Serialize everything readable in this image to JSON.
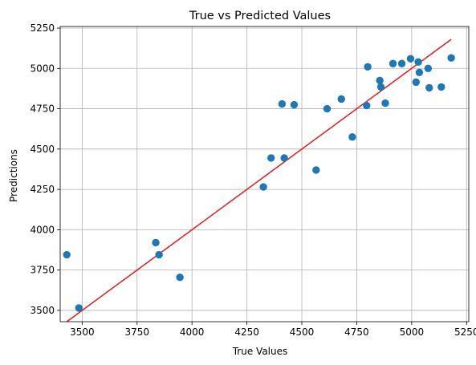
{
  "chart_data": {
    "type": "scatter",
    "title": "True vs Predicted Values",
    "xlabel": "True Values",
    "ylabel": "Predictions",
    "xlim": [
      3400,
      5260
    ],
    "ylim": [
      3430,
      5260
    ],
    "xticks": [
      3500,
      3750,
      4000,
      4250,
      4500,
      4750,
      5000,
      5250
    ],
    "yticks": [
      3500,
      3750,
      4000,
      4250,
      4500,
      4750,
      5000,
      5250
    ],
    "xtick_labels": [
      "3500",
      "3750",
      "4000",
      "4250",
      "4500",
      "4750",
      "5000",
      "5250"
    ],
    "ytick_labels": [
      "3500",
      "3750",
      "4000",
      "4250",
      "4500",
      "4750",
      "5000",
      "5250"
    ],
    "grid": true,
    "points": [
      {
        "x": 3430,
        "y": 3845
      },
      {
        "x": 3485,
        "y": 3515
      },
      {
        "x": 3835,
        "y": 3920
      },
      {
        "x": 3850,
        "y": 3845
      },
      {
        "x": 3945,
        "y": 3705
      },
      {
        "x": 4325,
        "y": 4265
      },
      {
        "x": 4360,
        "y": 4445
      },
      {
        "x": 4410,
        "y": 4780
      },
      {
        "x": 4420,
        "y": 4445
      },
      {
        "x": 4465,
        "y": 4775
      },
      {
        "x": 4565,
        "y": 4370
      },
      {
        "x": 4615,
        "y": 4750
      },
      {
        "x": 4680,
        "y": 4810
      },
      {
        "x": 4730,
        "y": 4575
      },
      {
        "x": 4795,
        "y": 4770
      },
      {
        "x": 4800,
        "y": 5010
      },
      {
        "x": 4855,
        "y": 4925
      },
      {
        "x": 4860,
        "y": 4885
      },
      {
        "x": 4880,
        "y": 4785
      },
      {
        "x": 4915,
        "y": 5030
      },
      {
        "x": 4955,
        "y": 5030
      },
      {
        "x": 4995,
        "y": 5060
      },
      {
        "x": 5020,
        "y": 4915
      },
      {
        "x": 5030,
        "y": 5040
      },
      {
        "x": 5035,
        "y": 4975
      },
      {
        "x": 5075,
        "y": 5000
      },
      {
        "x": 5080,
        "y": 4880
      },
      {
        "x": 5135,
        "y": 4885
      },
      {
        "x": 5180,
        "y": 5065
      }
    ],
    "reference_line": {
      "x": [
        3430,
        5180
      ],
      "y": [
        3430,
        5180
      ]
    },
    "colors": {
      "points": "#1f77b4",
      "line": "#e41a1c",
      "grid": "#b0b0b0"
    }
  }
}
